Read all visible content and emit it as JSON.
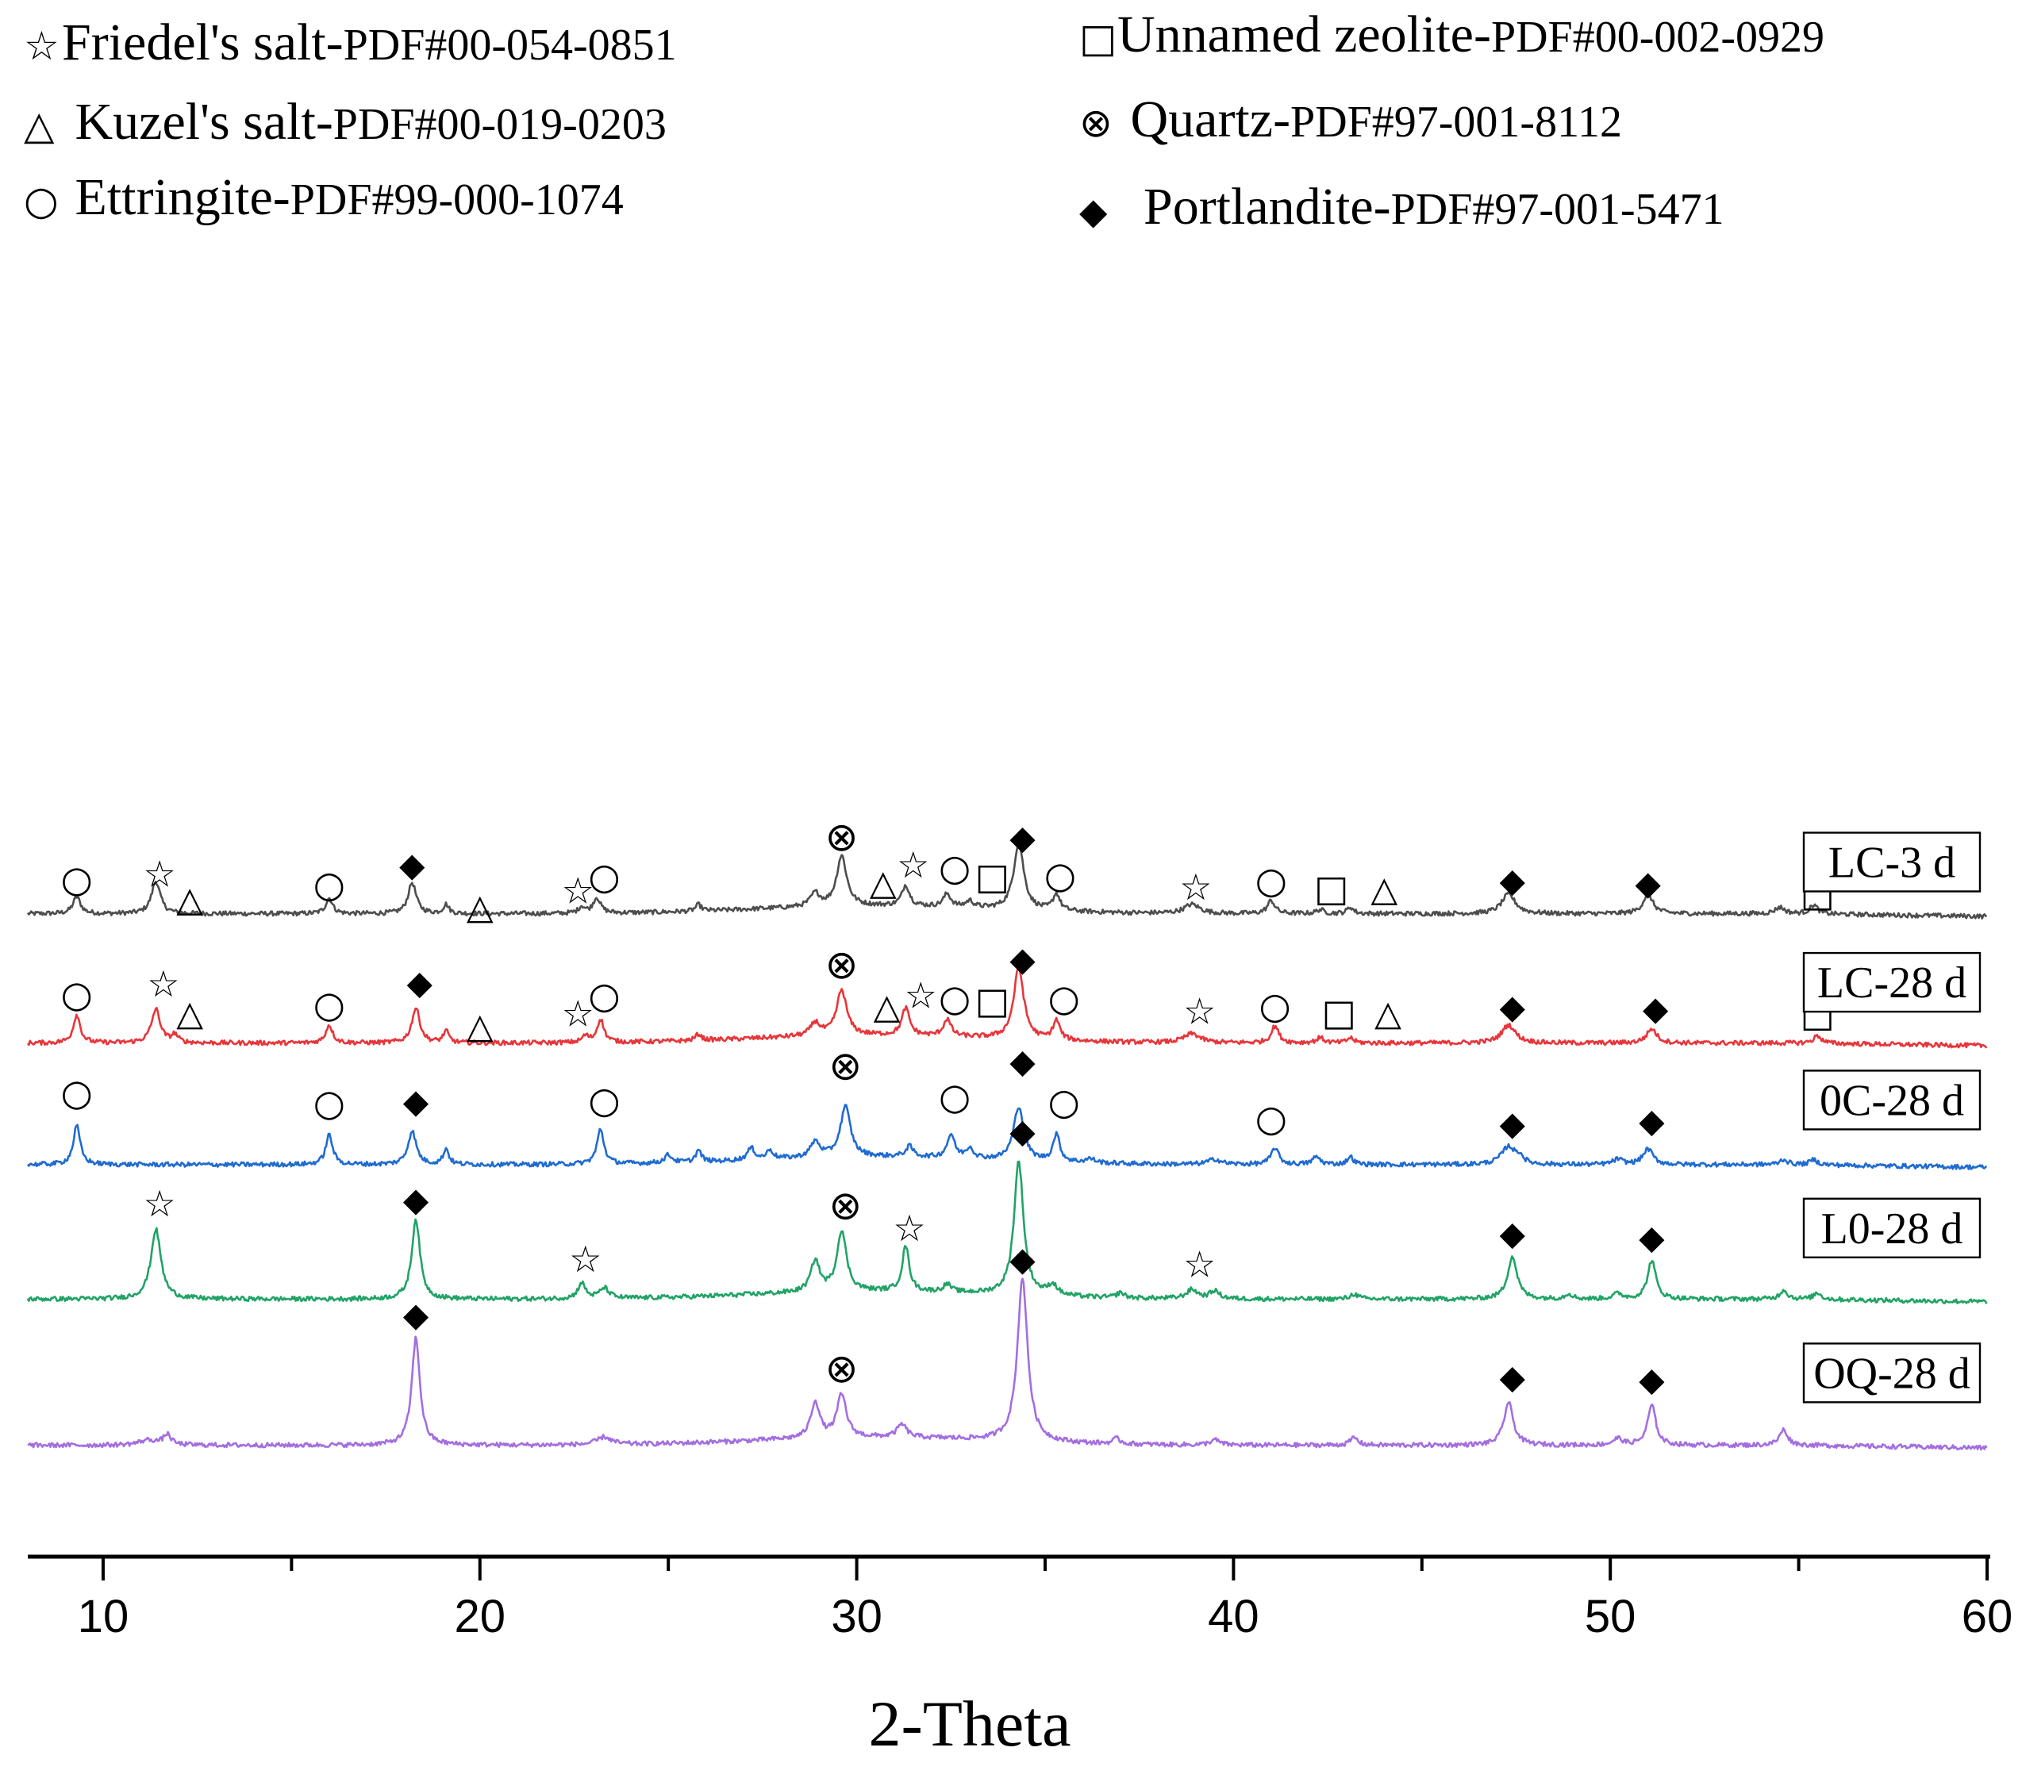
{
  "chart_data": {
    "type": "line",
    "xlabel": "2-Theta",
    "ylabel": "",
    "xlim": [
      8,
      60
    ],
    "xticks": [
      "10",
      "20",
      "30",
      "40",
      "50",
      "60"
    ],
    "grid": false,
    "legend": [
      {
        "symbol": "☆",
        "marker": "star",
        "name": "Friedel's salt-",
        "pdf": "PDF#00-054-0851"
      },
      {
        "symbol": "△",
        "marker": "triangle",
        "name": " Kuzel's salt-",
        "pdf": "PDF#00-019-0203"
      },
      {
        "symbol": "○",
        "marker": "circle",
        "name": " Ettringite-",
        "pdf": "PDF#99-000-1074"
      },
      {
        "symbol": "□",
        "marker": "square",
        "name": "Unnamed zeolite-",
        "pdf": "PDF#00-002-0929"
      },
      {
        "symbol": "⊗",
        "marker": "otimes",
        "name": " Quartz-",
        "pdf": "PDF#97-001-8112"
      },
      {
        "symbol": "◆",
        "marker": "diamond",
        "name": "  Portlandite-",
        "pdf": "PDF#97-001-5471"
      }
    ],
    "series": [
      {
        "name": "LC-3 d",
        "color": "#4d4d4d",
        "baseline": 0.1,
        "peaks": [
          [
            9.3,
            0.13,
            0.12
          ],
          [
            11.4,
            0.25,
            0.14
          ],
          [
            16.0,
            0.12,
            0.11
          ],
          [
            18.2,
            0.24,
            0.13
          ],
          [
            19.1,
            0.07,
            0.09
          ],
          [
            22.7,
            0.05,
            0.1
          ],
          [
            23.1,
            0.12,
            0.12
          ],
          [
            25.8,
            0.05,
            0.09
          ],
          [
            28.9,
            0.1,
            0.15
          ],
          [
            29.6,
            0.39,
            0.16
          ],
          [
            31.3,
            0.16,
            0.12
          ],
          [
            32.4,
            0.1,
            0.12
          ],
          [
            33.0,
            0.05,
            0.12
          ],
          [
            34.3,
            0.52,
            0.16
          ],
          [
            35.3,
            0.13,
            0.11
          ],
          [
            38.9,
            0.07,
            0.25
          ],
          [
            41.0,
            0.1,
            0.12
          ],
          [
            42.3,
            0.03,
            0.12
          ],
          [
            43.1,
            0.05,
            0.1
          ],
          [
            47.3,
            0.15,
            0.22
          ],
          [
            51.0,
            0.15,
            0.16
          ],
          [
            54.5,
            0.05,
            0.15
          ],
          [
            55.4,
            0.07,
            0.12
          ]
        ],
        "markers": [
          {
            "sym": "circle",
            "x": 9.3,
            "h": 0.27
          },
          {
            "sym": "star",
            "x": 11.5,
            "h": 0.31
          },
          {
            "sym": "triangle",
            "x": 12.3,
            "h": 0.12
          },
          {
            "sym": "circle",
            "x": 16.0,
            "h": 0.23
          },
          {
            "sym": "diamond",
            "x": 18.2,
            "h": 0.39
          },
          {
            "sym": "triangle",
            "x": 20.0,
            "h": 0.06
          },
          {
            "sym": "star",
            "x": 22.6,
            "h": 0.18
          },
          {
            "sym": "circle",
            "x": 23.3,
            "h": 0.29
          },
          {
            "sym": "otimes",
            "x": 29.6,
            "h": 0.59
          },
          {
            "sym": "triangle",
            "x": 30.7,
            "h": 0.25
          },
          {
            "sym": "star",
            "x": 31.5,
            "h": 0.38
          },
          {
            "sym": "circle",
            "x": 32.6,
            "h": 0.36
          },
          {
            "sym": "square",
            "x": 33.6,
            "h": 0.29
          },
          {
            "sym": "diamond",
            "x": 34.4,
            "h": 0.6
          },
          {
            "sym": "circle",
            "x": 35.4,
            "h": 0.3
          },
          {
            "sym": "star",
            "x": 39.0,
            "h": 0.21
          },
          {
            "sym": "circle",
            "x": 41.0,
            "h": 0.26
          },
          {
            "sym": "square",
            "x": 42.6,
            "h": 0.2
          },
          {
            "sym": "triangle",
            "x": 44.0,
            "h": 0.2
          },
          {
            "sym": "diamond",
            "x": 47.4,
            "h": 0.27
          },
          {
            "sym": "diamond",
            "x": 51.0,
            "h": 0.25
          },
          {
            "sym": "square",
            "x": 55.5,
            "h": 0.16
          }
        ],
        "label_y": 4.5
      },
      {
        "name": "LC-28 d",
        "color": "#e8353a",
        "baseline": 0.07,
        "peaks": [
          [
            9.3,
            0.22,
            0.11
          ],
          [
            11.4,
            0.26,
            0.14
          ],
          [
            11.9,
            0.06,
            0.1
          ],
          [
            16.0,
            0.14,
            0.11
          ],
          [
            18.3,
            0.27,
            0.13
          ],
          [
            19.1,
            0.09,
            0.09
          ],
          [
            22.8,
            0.05,
            0.1
          ],
          [
            23.2,
            0.18,
            0.11
          ],
          [
            25.8,
            0.05,
            0.09
          ],
          [
            28.9,
            0.1,
            0.15
          ],
          [
            29.6,
            0.35,
            0.16
          ],
          [
            31.3,
            0.21,
            0.12
          ],
          [
            32.4,
            0.13,
            0.12
          ],
          [
            34.3,
            0.55,
            0.16
          ],
          [
            35.3,
            0.15,
            0.11
          ],
          [
            38.9,
            0.07,
            0.25
          ],
          [
            41.1,
            0.13,
            0.12
          ],
          [
            42.3,
            0.04,
            0.12
          ],
          [
            43.1,
            0.04,
            0.1
          ],
          [
            47.3,
            0.14,
            0.22
          ],
          [
            51.1,
            0.11,
            0.16
          ],
          [
            55.5,
            0.06,
            0.12
          ]
        ],
        "markers": [
          {
            "sym": "circle",
            "x": 9.3,
            "h": 0.35
          },
          {
            "sym": "star",
            "x": 11.6,
            "h": 0.43
          },
          {
            "sym": "triangle",
            "x": 12.3,
            "h": 0.21
          },
          {
            "sym": "circle",
            "x": 16.0,
            "h": 0.27
          },
          {
            "sym": "diamond",
            "x": 18.4,
            "h": 0.45
          },
          {
            "sym": "triangle",
            "x": 20.0,
            "h": 0.11
          },
          {
            "sym": "star",
            "x": 22.6,
            "h": 0.2
          },
          {
            "sym": "circle",
            "x": 23.3,
            "h": 0.34
          },
          {
            "sym": "otimes",
            "x": 29.6,
            "h": 0.57
          },
          {
            "sym": "triangle",
            "x": 30.8,
            "h": 0.26
          },
          {
            "sym": "star",
            "x": 31.7,
            "h": 0.34
          },
          {
            "sym": "circle",
            "x": 32.6,
            "h": 0.32
          },
          {
            "sym": "square",
            "x": 33.6,
            "h": 0.3
          },
          {
            "sym": "diamond",
            "x": 34.4,
            "h": 0.63
          },
          {
            "sym": "circle",
            "x": 35.5,
            "h": 0.32
          },
          {
            "sym": "star",
            "x": 39.1,
            "h": 0.22
          },
          {
            "sym": "circle",
            "x": 41.1,
            "h": 0.26
          },
          {
            "sym": "square",
            "x": 42.8,
            "h": 0.21
          },
          {
            "sym": "triangle",
            "x": 44.1,
            "h": 0.21
          },
          {
            "sym": "diamond",
            "x": 47.4,
            "h": 0.26
          },
          {
            "sym": "diamond",
            "x": 51.2,
            "h": 0.25
          },
          {
            "sym": "square",
            "x": 55.5,
            "h": 0.2
          }
        ],
        "label_y": 3.57
      },
      {
        "name": "0C-28 d",
        "color": "#1f6bd1",
        "baseline": 0.08,
        "peaks": [
          [
            9.3,
            0.3,
            0.11
          ],
          [
            16.0,
            0.23,
            0.11
          ],
          [
            18.2,
            0.26,
            0.13
          ],
          [
            19.1,
            0.12,
            0.09
          ],
          [
            23.2,
            0.27,
            0.11
          ],
          [
            25.0,
            0.06,
            0.12
          ],
          [
            25.8,
            0.09,
            0.09
          ],
          [
            27.2,
            0.09,
            0.12
          ],
          [
            27.7,
            0.07,
            0.1
          ],
          [
            28.9,
            0.12,
            0.15
          ],
          [
            29.7,
            0.39,
            0.16
          ],
          [
            31.4,
            0.08,
            0.12
          ],
          [
            32.5,
            0.18,
            0.12
          ],
          [
            33.0,
            0.08,
            0.12
          ],
          [
            34.3,
            0.42,
            0.16
          ],
          [
            35.3,
            0.21,
            0.11
          ],
          [
            36.2,
            0.03,
            0.15
          ],
          [
            39.5,
            0.04,
            0.2
          ],
          [
            41.1,
            0.13,
            0.12
          ],
          [
            42.2,
            0.06,
            0.12
          ],
          [
            43.1,
            0.06,
            0.1
          ],
          [
            47.3,
            0.14,
            0.22
          ],
          [
            47.6,
            0.05,
            0.1
          ],
          [
            50.2,
            0.04,
            0.15
          ],
          [
            51.0,
            0.12,
            0.16
          ],
          [
            54.6,
            0.04,
            0.12
          ],
          [
            55.4,
            0.04,
            0.12
          ]
        ],
        "markers": [
          {
            "sym": "circle",
            "x": 9.3,
            "h": 0.54
          },
          {
            "sym": "circle",
            "x": 16.0,
            "h": 0.46
          },
          {
            "sym": "diamond",
            "x": 18.3,
            "h": 0.48
          },
          {
            "sym": "circle",
            "x": 23.3,
            "h": 0.48
          },
          {
            "sym": "otimes",
            "x": 29.7,
            "h": 0.74
          },
          {
            "sym": "circle",
            "x": 32.6,
            "h": 0.51
          },
          {
            "sym": "diamond",
            "x": 34.4,
            "h": 0.79
          },
          {
            "sym": "circle",
            "x": 35.5,
            "h": 0.47
          },
          {
            "sym": "circle",
            "x": 41.0,
            "h": 0.34
          },
          {
            "sym": "diamond",
            "x": 47.4,
            "h": 0.31
          },
          {
            "sym": "diamond",
            "x": 51.1,
            "h": 0.33
          }
        ],
        "label_y": 2.66
      },
      {
        "name": "L0-28 d",
        "color": "#21a366",
        "baseline": 0.09,
        "peaks": [
          [
            11.4,
            0.54,
            0.16
          ],
          [
            18.3,
            0.62,
            0.13
          ],
          [
            22.7,
            0.12,
            0.12
          ],
          [
            23.3,
            0.08,
            0.15
          ],
          [
            28.9,
            0.24,
            0.14
          ],
          [
            29.6,
            0.47,
            0.15
          ],
          [
            31.3,
            0.35,
            0.11
          ],
          [
            32.4,
            0.06,
            0.12
          ],
          [
            34.3,
            1.04,
            0.15
          ],
          [
            35.2,
            0.08,
            0.15
          ],
          [
            37.0,
            0.04,
            0.12
          ],
          [
            38.9,
            0.07,
            0.18
          ],
          [
            39.5,
            0.06,
            0.15
          ],
          [
            43.2,
            0.04,
            0.12
          ],
          [
            47.4,
            0.33,
            0.15
          ],
          [
            48.9,
            0.04,
            0.12
          ],
          [
            50.2,
            0.04,
            0.15
          ],
          [
            51.1,
            0.3,
            0.13
          ],
          [
            54.6,
            0.07,
            0.12
          ],
          [
            55.5,
            0.05,
            0.12
          ]
        ],
        "markers": [
          {
            "sym": "star",
            "x": 11.5,
            "h": 0.73
          },
          {
            "sym": "diamond",
            "x": 18.3,
            "h": 0.77
          },
          {
            "sym": "star",
            "x": 22.8,
            "h": 0.3
          },
          {
            "sym": "otimes",
            "x": 29.7,
            "h": 0.71
          },
          {
            "sym": "star",
            "x": 31.4,
            "h": 0.54
          },
          {
            "sym": "diamond",
            "x": 34.4,
            "h": 1.3
          },
          {
            "sym": "star",
            "x": 39.1,
            "h": 0.26
          },
          {
            "sym": "diamond",
            "x": 47.4,
            "h": 0.51
          },
          {
            "sym": "diamond",
            "x": 51.1,
            "h": 0.48
          }
        ],
        "label_y": 1.67
      },
      {
        "name": "OQ-28 d",
        "color": "#a36ee0",
        "baseline": 0.06,
        "peaks": [
          [
            11.2,
            0.04,
            0.3
          ],
          [
            11.7,
            0.08,
            0.12
          ],
          [
            18.3,
            0.83,
            0.13
          ],
          [
            23.3,
            0.06,
            0.22
          ],
          [
            28.9,
            0.28,
            0.14
          ],
          [
            29.6,
            0.33,
            0.15
          ],
          [
            31.2,
            0.1,
            0.15
          ],
          [
            34.4,
            1.27,
            0.16
          ],
          [
            36.9,
            0.04,
            0.12
          ],
          [
            39.5,
            0.04,
            0.15
          ],
          [
            43.2,
            0.06,
            0.12
          ],
          [
            47.3,
            0.33,
            0.15
          ],
          [
            50.2,
            0.05,
            0.15
          ],
          [
            51.1,
            0.31,
            0.13
          ],
          [
            54.6,
            0.12,
            0.13
          ]
        ],
        "markers": [
          {
            "sym": "diamond",
            "x": 18.3,
            "h": 0.98
          },
          {
            "sym": "otimes",
            "x": 29.6,
            "h": 0.55
          },
          {
            "sym": "diamond",
            "x": 34.4,
            "h": 1.41
          },
          {
            "sym": "diamond",
            "x": 47.4,
            "h": 0.5
          },
          {
            "sym": "diamond",
            "x": 51.1,
            "h": 0.48
          }
        ],
        "label_y": 0.55
      }
    ],
    "offsets": [
      4.65,
      3.68,
      2.73,
      1.68,
      0.58
    ]
  }
}
